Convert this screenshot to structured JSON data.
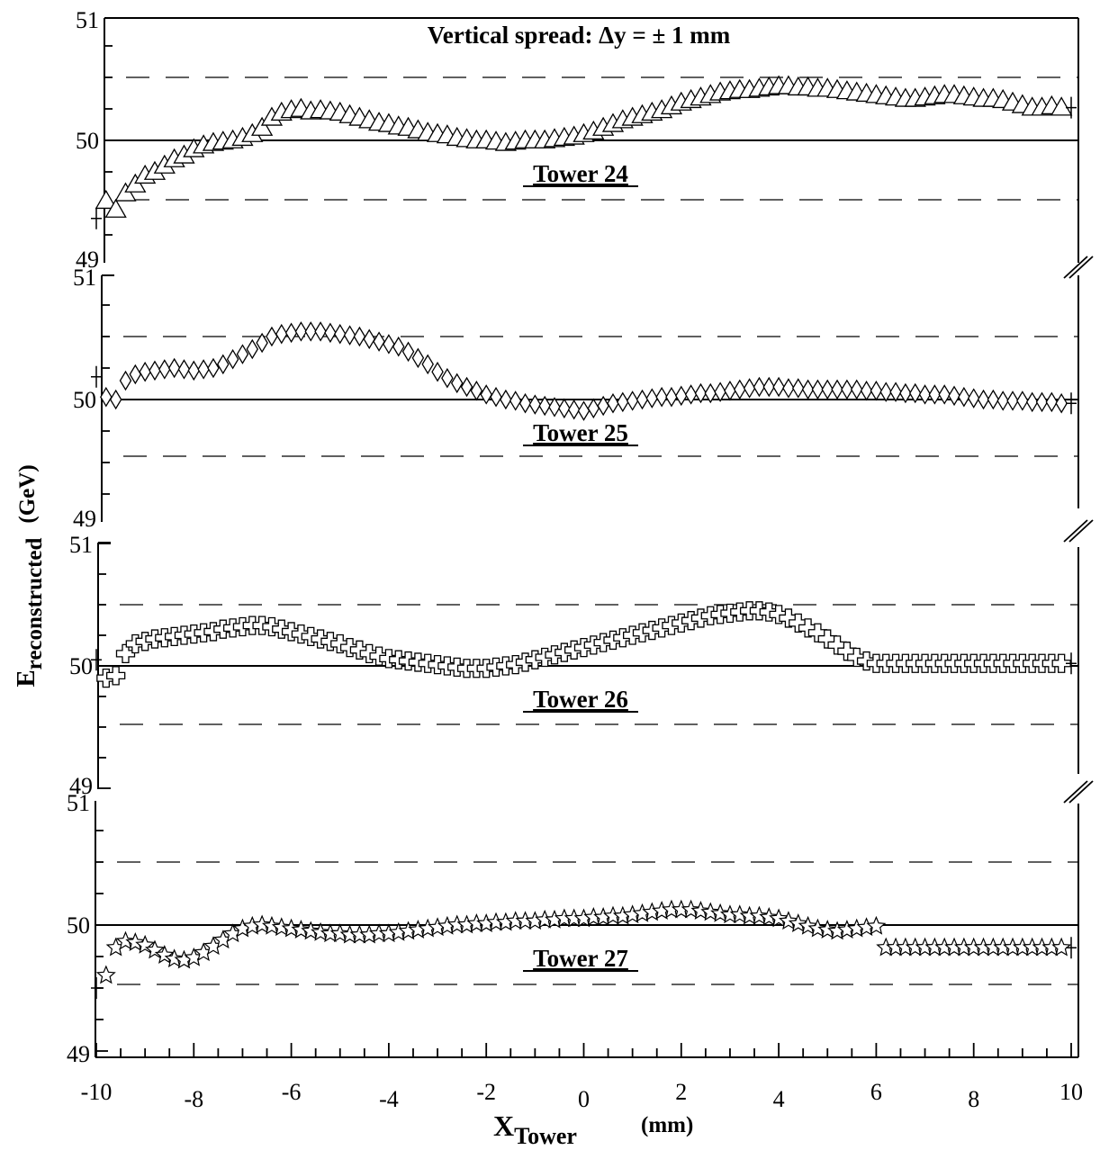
{
  "chart_data": {
    "type": "scatter",
    "title": "Vertical spread: Δy  = ± 1 mm",
    "xlabel": {
      "main": "X",
      "sub": "Tower",
      "unit": "(mm)"
    },
    "ylabel": {
      "main": "E",
      "sub": "reconstructed",
      "unit": "(GeV)"
    },
    "xlim": [
      -10,
      10
    ],
    "x_ticks": [
      "-10",
      "-8",
      "-6",
      "-4",
      "-2",
      "0",
      "2",
      "4",
      "6",
      "8",
      "10"
    ],
    "ylim": [
      49,
      51
    ],
    "y_ticks": [
      "49",
      "50",
      "51"
    ],
    "reference_line": 50,
    "dashed_lines": [
      49.5,
      50.5
    ],
    "x_step": 0.2,
    "panels": [
      {
        "name": "Tower 24",
        "marker": "triangle",
        "values": [
          49.38,
          49.52,
          49.45,
          49.58,
          49.65,
          49.72,
          49.75,
          49.8,
          49.85,
          49.88,
          49.93,
          49.96,
          49.98,
          49.99,
          50.0,
          50.02,
          50.05,
          50.1,
          50.18,
          50.22,
          50.24,
          50.25,
          50.23,
          50.24,
          50.23,
          50.22,
          50.2,
          50.18,
          50.16,
          50.14,
          50.13,
          50.11,
          50.1,
          50.08,
          50.06,
          50.05,
          50.04,
          50.02,
          50.01,
          50.0,
          50.0,
          49.99,
          49.98,
          49.99,
          50.0,
          50.0,
          50.0,
          50.01,
          50.02,
          50.03,
          50.05,
          50.07,
          50.1,
          50.13,
          50.16,
          50.18,
          50.2,
          50.22,
          50.24,
          50.27,
          50.3,
          50.32,
          50.34,
          50.36,
          50.38,
          50.39,
          50.4,
          50.4,
          50.41,
          50.42,
          50.43,
          50.43,
          50.42,
          50.42,
          50.41,
          50.41,
          50.4,
          50.39,
          50.38,
          50.37,
          50.36,
          50.35,
          50.34,
          50.33,
          50.33,
          50.34,
          50.35,
          50.36,
          50.36,
          50.35,
          50.34,
          50.33,
          50.33,
          50.32,
          50.3,
          50.28,
          50.26,
          50.26,
          50.27,
          50.26,
          50.26
        ]
      },
      {
        "name": "Tower 25",
        "marker": "diamond",
        "values": [
          50.18,
          50.02,
          50.0,
          50.15,
          50.2,
          50.22,
          50.23,
          50.24,
          50.25,
          50.24,
          50.23,
          50.24,
          50.25,
          50.28,
          50.32,
          50.36,
          50.4,
          50.45,
          50.5,
          50.52,
          50.53,
          50.54,
          50.54,
          50.54,
          50.53,
          50.52,
          50.51,
          50.5,
          50.48,
          50.46,
          50.44,
          50.42,
          50.38,
          50.33,
          50.28,
          50.22,
          50.17,
          50.13,
          50.1,
          50.07,
          50.04,
          50.02,
          50.0,
          49.99,
          49.97,
          49.96,
          49.95,
          49.94,
          49.93,
          49.92,
          49.91,
          49.93,
          49.95,
          49.97,
          49.98,
          49.99,
          50.0,
          50.01,
          50.02,
          50.02,
          50.03,
          50.04,
          50.05,
          50.05,
          50.06,
          50.07,
          50.08,
          50.09,
          50.1,
          50.1,
          50.1,
          50.09,
          50.09,
          50.08,
          50.08,
          50.08,
          50.08,
          50.08,
          50.08,
          50.07,
          50.07,
          50.06,
          50.06,
          50.05,
          50.05,
          50.04,
          50.04,
          50.04,
          50.03,
          50.02,
          50.01,
          50.0,
          50.0,
          49.99,
          49.99,
          49.99,
          49.98,
          49.98,
          49.98,
          49.97,
          49.97
        ]
      },
      {
        "name": "Tower 26",
        "marker": "cross",
        "values": [
          50.05,
          49.9,
          49.92,
          50.1,
          50.18,
          50.2,
          50.22,
          50.23,
          50.24,
          50.25,
          50.26,
          50.27,
          50.28,
          50.3,
          50.31,
          50.32,
          50.33,
          50.33,
          50.32,
          50.3,
          50.28,
          50.26,
          50.24,
          50.22,
          50.2,
          50.18,
          50.15,
          50.13,
          50.1,
          50.08,
          50.06,
          50.05,
          50.04,
          50.03,
          50.02,
          50.01,
          50.0,
          49.99,
          49.98,
          49.98,
          49.98,
          49.99,
          50.0,
          50.01,
          50.03,
          50.05,
          50.07,
          50.09,
          50.11,
          50.13,
          50.15,
          50.17,
          50.19,
          50.21,
          50.23,
          50.25,
          50.27,
          50.29,
          50.31,
          50.33,
          50.35,
          50.37,
          50.39,
          50.41,
          50.42,
          50.43,
          50.44,
          50.45,
          50.45,
          50.44,
          50.42,
          50.39,
          50.35,
          50.31,
          50.27,
          50.22,
          50.17,
          50.12,
          50.07,
          50.04,
          50.02,
          50.02,
          50.02,
          50.02,
          50.02,
          50.02,
          50.02,
          50.02,
          50.02,
          50.02,
          50.02,
          50.02,
          50.02,
          50.02,
          50.02,
          50.02,
          50.02,
          50.02,
          50.02,
          50.02,
          50.02
        ]
      },
      {
        "name": "Tower 27",
        "marker": "star",
        "values": [
          49.5,
          49.6,
          49.82,
          49.87,
          49.86,
          49.84,
          49.8,
          49.76,
          49.73,
          49.72,
          49.74,
          49.78,
          49.83,
          49.88,
          49.93,
          49.97,
          49.99,
          50.0,
          49.99,
          49.98,
          49.97,
          49.96,
          49.95,
          49.94,
          49.93,
          49.93,
          49.92,
          49.92,
          49.92,
          49.93,
          49.93,
          49.94,
          49.95,
          49.96,
          49.97,
          49.98,
          49.99,
          50.0,
          50.0,
          50.01,
          50.01,
          50.02,
          50.02,
          50.03,
          50.03,
          50.03,
          50.04,
          50.04,
          50.05,
          50.05,
          50.05,
          50.06,
          50.06,
          50.07,
          50.07,
          50.08,
          50.09,
          50.1,
          50.11,
          50.12,
          50.12,
          50.12,
          50.11,
          50.1,
          50.09,
          50.08,
          50.08,
          50.07,
          50.07,
          50.06,
          50.05,
          50.03,
          50.01,
          49.99,
          49.97,
          49.96,
          49.95,
          49.96,
          49.97,
          49.98,
          49.99,
          49.82,
          49.82,
          49.82,
          49.82,
          49.82,
          49.82,
          49.82,
          49.82,
          49.82,
          49.82,
          49.82,
          49.82,
          49.82,
          49.82,
          49.82,
          49.82,
          49.82,
          49.82,
          49.82,
          49.82
        ]
      }
    ]
  }
}
